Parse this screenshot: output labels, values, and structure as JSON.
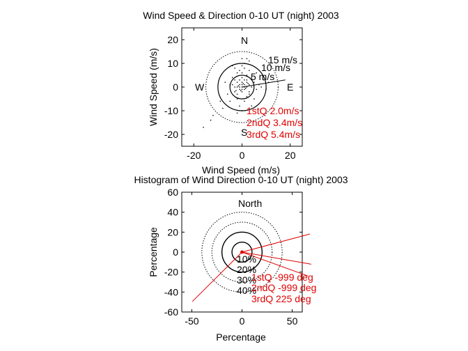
{
  "chart_data": [
    {
      "type": "scatter",
      "title": "Wind Speed & Direction 0-10 UT (night) 2003",
      "xlabel": "Wind Speed (m/s)",
      "ylabel": "Wind Speed (m/s)",
      "xlim": [
        -25,
        25
      ],
      "ylim": [
        -25,
        25
      ],
      "xticks": [
        -20,
        0,
        20
      ],
      "yticks": [
        20,
        10,
        0,
        -10,
        -20
      ],
      "rings": [
        {
          "radius": 5,
          "label": "5 m/s"
        },
        {
          "radius": 10,
          "label": "10 m/s"
        },
        {
          "radius": 15,
          "label": "15 m/s"
        }
      ],
      "compass": {
        "n": "N",
        "e": "E",
        "s": "S",
        "w": "W"
      },
      "quartiles": [
        "1stQ 2.0m/s",
        "2ndQ 3.4m/s",
        "3rdQ 5.4m/s"
      ],
      "mean_vector": {
        "x": 18,
        "y": 3
      },
      "points": [
        [
          -1,
          1
        ],
        [
          -2,
          0
        ],
        [
          0,
          2
        ],
        [
          1,
          1
        ],
        [
          2,
          0
        ],
        [
          -1,
          -1
        ],
        [
          0,
          -2
        ],
        [
          1,
          -1
        ],
        [
          3,
          1
        ],
        [
          -3,
          0
        ],
        [
          -1,
          3
        ],
        [
          1,
          3
        ],
        [
          0,
          4
        ],
        [
          -2,
          2
        ],
        [
          2,
          2
        ],
        [
          4,
          0
        ],
        [
          -4,
          1
        ],
        [
          3,
          -2
        ],
        [
          -3,
          -2
        ],
        [
          0,
          6
        ],
        [
          -1,
          7
        ],
        [
          1,
          8
        ],
        [
          0,
          9
        ],
        [
          2,
          5
        ],
        [
          -2,
          6
        ],
        [
          5,
          2
        ],
        [
          -5,
          1
        ],
        [
          6,
          -1
        ],
        [
          -6,
          -3
        ],
        [
          4,
          4
        ],
        [
          -4,
          4
        ],
        [
          2,
          -4
        ],
        [
          -2,
          -5
        ],
        [
          1,
          -6
        ],
        [
          7,
          1
        ],
        [
          8,
          0
        ],
        [
          -1,
          -8
        ],
        [
          -8,
          -9
        ],
        [
          -12,
          -12
        ],
        [
          -13,
          -14
        ],
        [
          -16,
          -17
        ],
        [
          3,
          7
        ],
        [
          -3,
          8
        ],
        [
          1,
          10
        ],
        [
          0,
          12
        ],
        [
          9,
          3
        ],
        [
          -9,
          -6
        ],
        [
          5,
          -5
        ],
        [
          -5,
          -6
        ],
        [
          2,
          12
        ],
        [
          6,
          6
        ],
        [
          -7,
          2
        ],
        [
          10,
          -1
        ],
        [
          0,
          -10
        ],
        [
          -2,
          -11
        ],
        [
          4,
          -8
        ],
        [
          3,
          11
        ],
        [
          -4,
          9
        ],
        [
          11,
          2
        ],
        [
          0.5,
          1.5
        ],
        [
          -0.5,
          -1.5
        ],
        [
          1.5,
          -0.5
        ],
        [
          -1.5,
          0.5
        ],
        [
          2.5,
          1.5
        ],
        [
          -2.5,
          -1.5
        ],
        [
          0,
          0
        ],
        [
          1,
          0
        ],
        [
          -1,
          0
        ],
        [
          0,
          1
        ],
        [
          0,
          -1
        ],
        [
          2,
          3
        ],
        [
          -3,
          3
        ],
        [
          3,
          -3
        ],
        [
          -2,
          -3
        ]
      ]
    },
    {
      "type": "scatter",
      "title": "Histogram of Wind Direction 0-10 UT (night) 2003",
      "xlabel": "Percentage",
      "ylabel": "Percentage",
      "xlim": [
        -60,
        60
      ],
      "ylim": [
        -60,
        60
      ],
      "xticks": [
        -50,
        0,
        50
      ],
      "yticks": [
        60,
        40,
        20,
        0,
        -20,
        -40,
        -60
      ],
      "rings": [
        {
          "radius": 10,
          "label": "10%"
        },
        {
          "radius": 20,
          "label": "20%"
        },
        {
          "radius": 30,
          "label": "30%"
        },
        {
          "radius": 40,
          "label": "40%"
        }
      ],
      "north_label": "North",
      "quartiles": [
        "1stQ -999 deg",
        "2ndQ -999 deg",
        "3rdQ 225 deg"
      ],
      "spokes_deg": [
        75,
        100,
        110,
        225
      ]
    }
  ]
}
